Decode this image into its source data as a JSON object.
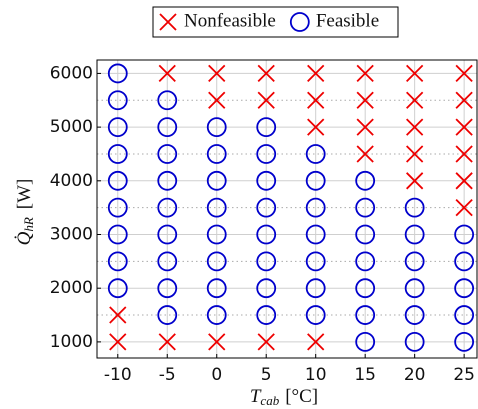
{
  "chart_data": {
    "type": "scatter",
    "legend": "top",
    "xlabel": {
      "symbol": "T",
      "subscript": "cab",
      "unit": "[°C]"
    },
    "ylabel": {
      "symbol": "Q̇",
      "subscript": "hR",
      "unit": "[W]"
    },
    "xlim": [
      -12.1,
      26.3
    ],
    "ylim": [
      700,
      6250
    ],
    "xticks": [
      -10,
      -5,
      0,
      5,
      10,
      15,
      20,
      25
    ],
    "yticks": [
      1000,
      2000,
      3000,
      4000,
      5000,
      6000
    ],
    "yminorticks": [
      1500,
      2500,
      3500,
      4500,
      5500
    ],
    "grid": true,
    "series": [
      {
        "name": "Nonfeasible",
        "color": "#ee0000",
        "marker": "x",
        "x": [
          -10,
          -10,
          -5,
          -5,
          0,
          0,
          0,
          5,
          5,
          5,
          10,
          10,
          10,
          10,
          15,
          15,
          15,
          15,
          20,
          20,
          20,
          20,
          20,
          25,
          25,
          25,
          25,
          25,
          25
        ],
        "values": [
          1500,
          1000,
          6000,
          1000,
          6000,
          5500,
          1000,
          6000,
          5500,
          1000,
          6000,
          5500,
          5000,
          1000,
          6000,
          5500,
          5000,
          4500,
          6000,
          5500,
          5000,
          4500,
          4000,
          6000,
          5500,
          5000,
          4500,
          4000,
          3500
        ]
      },
      {
        "name": "Feasible",
        "color": "#0000cc",
        "marker": "circle",
        "x": [
          -10,
          -10,
          -10,
          -10,
          -10,
          -10,
          -10,
          -10,
          -10,
          -5,
          -5,
          -5,
          -5,
          -5,
          -5,
          -5,
          -5,
          -5,
          0,
          0,
          0,
          0,
          0,
          0,
          0,
          0,
          5,
          5,
          5,
          5,
          5,
          5,
          5,
          5,
          10,
          10,
          10,
          10,
          10,
          10,
          10,
          15,
          15,
          15,
          15,
          15,
          15,
          15,
          20,
          20,
          20,
          20,
          20,
          20,
          25,
          25,
          25,
          25,
          25
        ],
        "values": [
          6000,
          5500,
          5000,
          4500,
          4000,
          3500,
          3000,
          2500,
          2000,
          5500,
          5000,
          4500,
          4000,
          3500,
          3000,
          2500,
          2000,
          1500,
          5000,
          4500,
          4000,
          3500,
          3000,
          2500,
          2000,
          1500,
          5000,
          4500,
          4000,
          3500,
          3000,
          2500,
          2000,
          1500,
          4500,
          4000,
          3500,
          3000,
          2500,
          2000,
          1500,
          4000,
          3500,
          3000,
          2500,
          2000,
          1500,
          1000,
          3500,
          3000,
          2500,
          2000,
          1500,
          1000,
          3000,
          2500,
          2000,
          1500,
          1000
        ]
      }
    ]
  }
}
